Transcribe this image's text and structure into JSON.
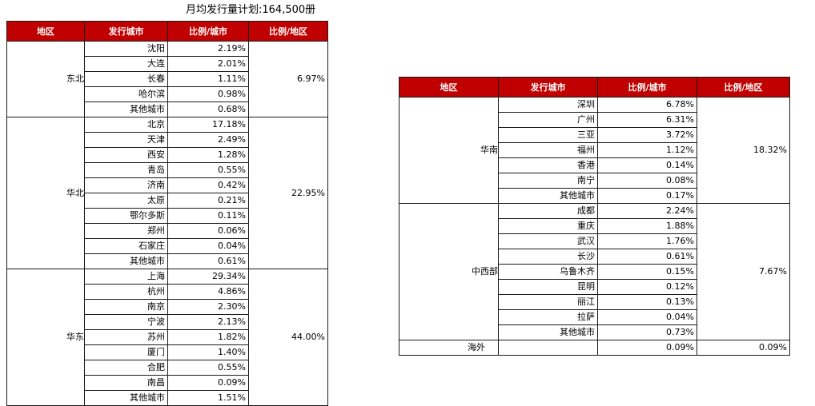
{
  "caption": "月均发行量计划:164,500册",
  "headers": [
    "地区",
    "发行城市",
    "比例/城市",
    "比例/地区"
  ],
  "left_table": [
    {
      "region": "东北",
      "region_pct": "6.97%",
      "cities": [
        {
          "name": "沈阳",
          "pct": "2.19%"
        },
        {
          "name": "大连",
          "pct": "2.01%"
        },
        {
          "name": "长春",
          "pct": "1.11%"
        },
        {
          "name": "哈尔滨",
          "pct": "0.98%"
        },
        {
          "name": "其他城市",
          "pct": "0.68%"
        }
      ]
    },
    {
      "region": "华北",
      "region_pct": "22.95%",
      "cities": [
        {
          "name": "北京",
          "pct": "17.18%"
        },
        {
          "name": "天津",
          "pct": "2.49%"
        },
        {
          "name": "西安",
          "pct": "1.28%"
        },
        {
          "name": "青岛",
          "pct": "0.55%"
        },
        {
          "name": "济南",
          "pct": "0.42%"
        },
        {
          "name": "太原",
          "pct": "0.21%"
        },
        {
          "name": "鄂尔多斯",
          "pct": "0.11%"
        },
        {
          "name": "郑州",
          "pct": "0.06%"
        },
        {
          "name": "石家庄",
          "pct": "0.04%"
        },
        {
          "name": "其他城市",
          "pct": "0.61%"
        }
      ]
    },
    {
      "region": "华东",
      "region_pct": "44.00%",
      "cities": [
        {
          "name": "上海",
          "pct": "29.34%"
        },
        {
          "name": "杭州",
          "pct": "4.86%"
        },
        {
          "name": "南京",
          "pct": "2.30%"
        },
        {
          "name": "宁波",
          "pct": "2.13%"
        },
        {
          "name": "苏州",
          "pct": "1.82%"
        },
        {
          "name": "厦门",
          "pct": "1.40%"
        },
        {
          "name": "合肥",
          "pct": "0.55%"
        },
        {
          "name": "南昌",
          "pct": "0.09%"
        },
        {
          "name": "其他城市",
          "pct": "1.51%"
        }
      ]
    }
  ],
  "right_table": [
    {
      "region": "华南",
      "region_pct": "18.32%",
      "cities": [
        {
          "name": "深圳",
          "pct": "6.78%"
        },
        {
          "name": "广州",
          "pct": "6.31%"
        },
        {
          "name": "三亚",
          "pct": "3.72%"
        },
        {
          "name": "福州",
          "pct": "1.12%"
        },
        {
          "name": "香港",
          "pct": "0.14%"
        },
        {
          "name": "南宁",
          "pct": "0.08%"
        },
        {
          "name": "其他城市",
          "pct": "0.17%"
        }
      ]
    },
    {
      "region": "中西部",
      "region_pct": "7.67%",
      "cities": [
        {
          "name": "成都",
          "pct": "2.24%"
        },
        {
          "name": "重庆",
          "pct": "1.88%"
        },
        {
          "name": "武汉",
          "pct": "1.76%"
        },
        {
          "name": "长沙",
          "pct": "0.61%"
        },
        {
          "name": "乌鲁木齐",
          "pct": "0.15%"
        },
        {
          "name": "昆明",
          "pct": "0.12%"
        },
        {
          "name": "丽江",
          "pct": "0.13%"
        },
        {
          "name": "拉萨",
          "pct": "0.04%"
        },
        {
          "name": "其他城市",
          "pct": "0.73%"
        }
      ]
    }
  ],
  "overseas": {
    "region": "海外",
    "city_pct": "0.09%",
    "region_pct": "0.09%"
  },
  "colors": {
    "header_bg": "#c00000",
    "header_text": "#ffffff",
    "border": "#1a1a1a"
  }
}
